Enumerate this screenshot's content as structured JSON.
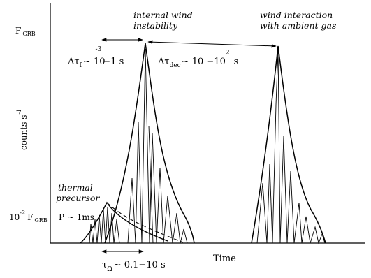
{
  "axes": {
    "y_axis_label": "counts s",
    "y_axis_label_exp": "-1",
    "x_axis_label": "Time",
    "y_tick_top_base": "F",
    "y_tick_top_sub": "GRB",
    "y_tick_low_coef": "10",
    "y_tick_low_exp": "-2",
    "y_tick_low_base": "F",
    "y_tick_low_sub": "GRB"
  },
  "labels": {
    "internal_line1": "internal wind",
    "internal_line2": "instability",
    "interaction_line1": "wind interaction",
    "interaction_line2": "with ambient gas",
    "thermal_line1": "thermal",
    "thermal_line2": "precursor",
    "period": "P ~ 1ms"
  },
  "annotations": {
    "dt_f_sym": "Δτ",
    "dt_f_sub": "f",
    "dt_f_mid": "~ 10",
    "dt_f_exp": "-3",
    "dt_f_tail": "−1 s",
    "dt_dec_sym": "Δτ",
    "dt_dec_sub": "dec",
    "dt_dec_mid": "~ 10 −10",
    "dt_dec_exp": "2",
    "dt_dec_tail": "s",
    "tau_sym": "τ",
    "tau_sub": "Ω",
    "tau_tail": "~ 0.1−10  s"
  }
}
